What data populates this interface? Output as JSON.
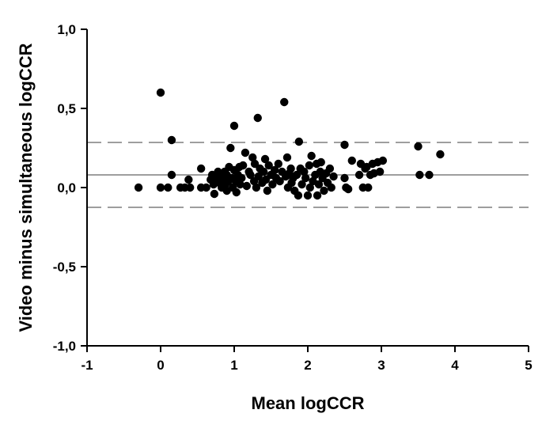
{
  "chart_data": {
    "type": "scatter",
    "title": "",
    "xlabel": "Mean logCCR",
    "ylabel": "Video minus simultaneous logCCR",
    "xlim": [
      -1,
      5
    ],
    "ylim": [
      -1.0,
      1.0
    ],
    "x_ticks": [
      -1,
      0,
      1,
      2,
      3,
      4,
      5
    ],
    "x_tick_labels": [
      "-1",
      "0",
      "1",
      "2",
      "3",
      "4",
      "5"
    ],
    "y_ticks": [
      -1.0,
      -0.5,
      0.0,
      0.5,
      1.0
    ],
    "y_tick_labels": [
      "-1,0",
      "-0,5",
      "0,0",
      "0,5",
      "1,0"
    ],
    "grid": false,
    "reference_lines": [
      {
        "y": 0.285,
        "style": "dashed"
      },
      {
        "y": 0.08,
        "style": "solid"
      },
      {
        "y": -0.125,
        "style": "dashed"
      }
    ],
    "marker_color": "#000000",
    "line_color": "#7f7f7f",
    "points": [
      [
        -0.3,
        0.0
      ],
      [
        0.0,
        0.6
      ],
      [
        0.0,
        0.0
      ],
      [
        0.1,
        0.0
      ],
      [
        0.15,
        0.3
      ],
      [
        0.15,
        0.08
      ],
      [
        0.27,
        0.0
      ],
      [
        0.33,
        0.0
      ],
      [
        0.38,
        0.05
      ],
      [
        0.4,
        0.0
      ],
      [
        0.55,
        0.12
      ],
      [
        0.55,
        0.0
      ],
      [
        0.62,
        0.0
      ],
      [
        0.68,
        0.05
      ],
      [
        0.7,
        0.08
      ],
      [
        0.72,
        0.02
      ],
      [
        0.73,
        -0.04
      ],
      [
        0.75,
        0.06
      ],
      [
        0.78,
        0.1
      ],
      [
        0.8,
        0.03
      ],
      [
        0.82,
        0.07
      ],
      [
        0.83,
        0.0
      ],
      [
        0.85,
        0.05
      ],
      [
        0.87,
        0.1
      ],
      [
        0.88,
        0.02
      ],
      [
        0.9,
        0.08
      ],
      [
        0.9,
        -0.02
      ],
      [
        0.92,
        0.04
      ],
      [
        0.93,
        0.13
      ],
      [
        0.95,
        0.25
      ],
      [
        0.97,
        0.06
      ],
      [
        0.98,
        0.0
      ],
      [
        1.0,
        0.39
      ],
      [
        1.0,
        0.11
      ],
      [
        1.02,
        0.04
      ],
      [
        1.03,
        -0.03
      ],
      [
        1.05,
        0.08
      ],
      [
        1.07,
        0.13
      ],
      [
        1.08,
        0.02
      ],
      [
        1.1,
        0.06
      ],
      [
        1.12,
        0.14
      ],
      [
        1.15,
        0.22
      ],
      [
        1.17,
        0.01
      ],
      [
        1.2,
        0.1
      ],
      [
        1.22,
        0.08
      ],
      [
        1.25,
        0.19
      ],
      [
        1.27,
        0.04
      ],
      [
        1.28,
        0.15
      ],
      [
        1.3,
        0.0
      ],
      [
        1.32,
        0.44
      ],
      [
        1.33,
        0.07
      ],
      [
        1.35,
        0.12
      ],
      [
        1.38,
        0.03
      ],
      [
        1.4,
        0.1
      ],
      [
        1.42,
        0.18
      ],
      [
        1.43,
        0.05
      ],
      [
        1.45,
        -0.02
      ],
      [
        1.47,
        0.14
      ],
      [
        1.5,
        0.08
      ],
      [
        1.52,
        0.02
      ],
      [
        1.55,
        0.11
      ],
      [
        1.57,
        0.06
      ],
      [
        1.6,
        0.15
      ],
      [
        1.62,
        0.04
      ],
      [
        1.65,
        0.1
      ],
      [
        1.68,
        0.54
      ],
      [
        1.7,
        0.07
      ],
      [
        1.72,
        0.19
      ],
      [
        1.73,
        0.0
      ],
      [
        1.75,
        0.09
      ],
      [
        1.77,
        0.12
      ],
      [
        1.78,
        0.03
      ],
      [
        1.8,
        0.06
      ],
      [
        1.82,
        -0.02
      ],
      [
        1.85,
        0.08
      ],
      [
        1.87,
        -0.05
      ],
      [
        1.88,
        0.29
      ],
      [
        1.9,
        0.12
      ],
      [
        1.92,
        0.02
      ],
      [
        1.95,
        0.1
      ],
      [
        1.97,
        0.06
      ],
      [
        2.0,
        -0.05
      ],
      [
        2.02,
        0.14
      ],
      [
        2.03,
        0.0
      ],
      [
        2.05,
        0.2
      ],
      [
        2.07,
        0.04
      ],
      [
        2.1,
        0.08
      ],
      [
        2.12,
        0.15
      ],
      [
        2.13,
        -0.05
      ],
      [
        2.15,
        0.02
      ],
      [
        2.17,
        0.1
      ],
      [
        2.18,
        0.16
      ],
      [
        2.2,
        0.06
      ],
      [
        2.22,
        -0.02
      ],
      [
        2.25,
        0.09
      ],
      [
        2.27,
        0.03
      ],
      [
        2.3,
        0.12
      ],
      [
        2.32,
        0.0
      ],
      [
        2.35,
        0.07
      ],
      [
        2.5,
        0.27
      ],
      [
        2.5,
        0.06
      ],
      [
        2.52,
        0.0
      ],
      [
        2.55,
        -0.01
      ],
      [
        2.6,
        0.17
      ],
      [
        2.7,
        0.08
      ],
      [
        2.72,
        0.15
      ],
      [
        2.75,
        0.0
      ],
      [
        2.78,
        0.12
      ],
      [
        2.8,
        0.13
      ],
      [
        2.82,
        0.0
      ],
      [
        2.85,
        0.08
      ],
      [
        2.88,
        0.15
      ],
      [
        2.9,
        0.09
      ],
      [
        2.95,
        0.16
      ],
      [
        2.98,
        0.1
      ],
      [
        3.02,
        0.17
      ],
      [
        3.5,
        0.26
      ],
      [
        3.52,
        0.08
      ],
      [
        3.65,
        0.08
      ],
      [
        3.8,
        0.21
      ]
    ]
  }
}
